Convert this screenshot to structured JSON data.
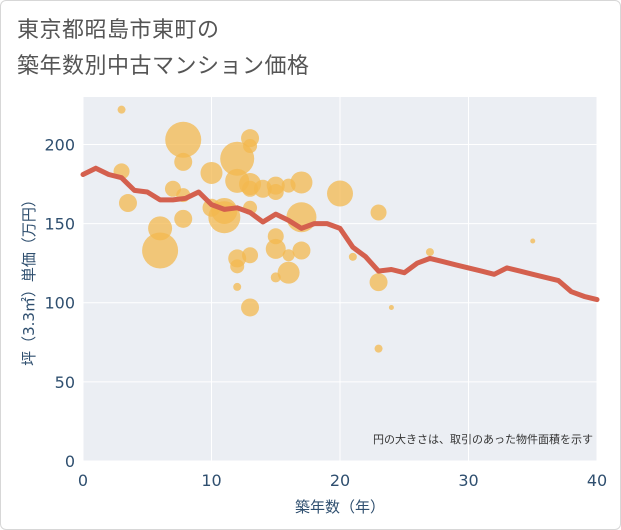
{
  "title_line1": "東京都昭島市東町の",
  "title_line2": "築年数別中古マンション価格",
  "chart_data": {
    "type": "scatter",
    "title": "東京都昭島市東町の 築年数別中古マンション価格",
    "xlabel": "築年数（年）",
    "ylabel": "坪（3.3㎡）単価（万円）",
    "xlim": [
      0,
      40
    ],
    "ylim": [
      0,
      230
    ],
    "x_ticks": [
      "0",
      "10",
      "20",
      "30",
      "40"
    ],
    "y_ticks": [
      "0",
      "50",
      "100",
      "150",
      "200"
    ],
    "grid": true,
    "note": "円の大きさは、取引のあった物件面積を示す",
    "colors": {
      "bubble": "#f3b84f",
      "line": "#d4604e",
      "grid": "#d5dde6",
      "plot_bg": "#ebeef3"
    },
    "series": [
      {
        "type": "line",
        "x": [
          0,
          1,
          2,
          3,
          4,
          5,
          6,
          7,
          8,
          9,
          10,
          11,
          12,
          13,
          14,
          15,
          16,
          17,
          18,
          19,
          20,
          21,
          22,
          23,
          24,
          25,
          26,
          27,
          28,
          29,
          30,
          31,
          32,
          33,
          34,
          35,
          36,
          37,
          38,
          39,
          40
        ],
        "y": [
          181,
          185,
          181,
          179,
          171,
          170,
          165,
          165,
          166,
          170,
          162,
          159,
          160,
          157,
          151,
          156,
          152,
          147,
          150,
          150,
          147,
          135,
          129,
          120,
          121,
          119,
          125,
          128,
          126,
          124,
          122,
          120,
          118,
          122,
          120,
          118,
          116,
          114,
          107,
          104,
          102
        ]
      },
      {
        "type": "bubble",
        "points": [
          {
            "x": 3,
            "y": 222,
            "s": 8
          },
          {
            "x": 3,
            "y": 183,
            "s": 16
          },
          {
            "x": 3.5,
            "y": 163,
            "s": 18
          },
          {
            "x": 6,
            "y": 147,
            "s": 24
          },
          {
            "x": 6,
            "y": 133,
            "s": 36
          },
          {
            "x": 7,
            "y": 172,
            "s": 16
          },
          {
            "x": 7.8,
            "y": 203,
            "s": 36
          },
          {
            "x": 7.8,
            "y": 189,
            "s": 18
          },
          {
            "x": 7.8,
            "y": 168,
            "s": 14
          },
          {
            "x": 7.8,
            "y": 153,
            "s": 18
          },
          {
            "x": 10,
            "y": 182,
            "s": 22
          },
          {
            "x": 10,
            "y": 160,
            "s": 18
          },
          {
            "x": 11,
            "y": 158,
            "s": 26
          },
          {
            "x": 11,
            "y": 154,
            "s": 32
          },
          {
            "x": 12,
            "y": 191,
            "s": 34
          },
          {
            "x": 12,
            "y": 177,
            "s": 24
          },
          {
            "x": 12,
            "y": 128,
            "s": 18
          },
          {
            "x": 12,
            "y": 123,
            "s": 14
          },
          {
            "x": 12,
            "y": 110,
            "s": 8
          },
          {
            "x": 13,
            "y": 204,
            "s": 18
          },
          {
            "x": 13,
            "y": 199,
            "s": 14
          },
          {
            "x": 13,
            "y": 175,
            "s": 22
          },
          {
            "x": 13,
            "y": 172,
            "s": 16
          },
          {
            "x": 13,
            "y": 160,
            "s": 14
          },
          {
            "x": 13,
            "y": 130,
            "s": 16
          },
          {
            "x": 13,
            "y": 97,
            "s": 18
          },
          {
            "x": 14,
            "y": 172,
            "s": 18
          },
          {
            "x": 15,
            "y": 174,
            "s": 18
          },
          {
            "x": 15,
            "y": 170,
            "s": 16
          },
          {
            "x": 15,
            "y": 142,
            "s": 16
          },
          {
            "x": 15,
            "y": 134,
            "s": 20
          },
          {
            "x": 15,
            "y": 116,
            "s": 10
          },
          {
            "x": 16,
            "y": 174,
            "s": 14
          },
          {
            "x": 16,
            "y": 130,
            "s": 12
          },
          {
            "x": 16,
            "y": 119,
            "s": 22
          },
          {
            "x": 17,
            "y": 176,
            "s": 22
          },
          {
            "x": 17,
            "y": 154,
            "s": 30
          },
          {
            "x": 17,
            "y": 133,
            "s": 18
          },
          {
            "x": 20,
            "y": 169,
            "s": 26
          },
          {
            "x": 21,
            "y": 129,
            "s": 8
          },
          {
            "x": 23,
            "y": 157,
            "s": 16
          },
          {
            "x": 23,
            "y": 113,
            "s": 18
          },
          {
            "x": 23,
            "y": 71,
            "s": 8
          },
          {
            "x": 24,
            "y": 97,
            "s": 5
          },
          {
            "x": 27,
            "y": 132,
            "s": 8
          },
          {
            "x": 35,
            "y": 139,
            "s": 5
          }
        ]
      }
    ]
  }
}
